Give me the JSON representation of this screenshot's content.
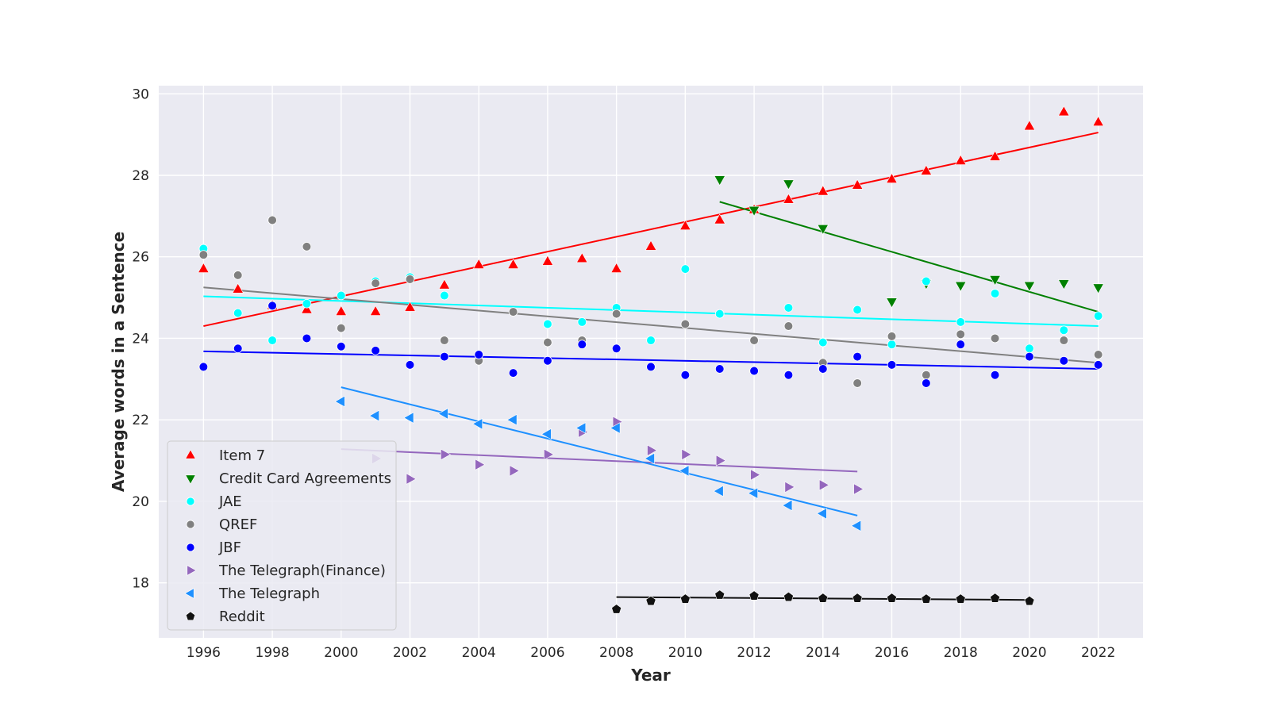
{
  "chart_data": {
    "type": "scatter",
    "xlabel": "Year",
    "ylabel": "Average words in a Sentence",
    "xlim": [
      1994.7,
      2023.3
    ],
    "ylim": [
      16.65,
      30.2
    ],
    "xticks": [
      1996,
      1998,
      2000,
      2002,
      2004,
      2006,
      2008,
      2010,
      2012,
      2014,
      2016,
      2018,
      2020,
      2022
    ],
    "yticks": [
      18,
      20,
      22,
      24,
      26,
      28,
      30
    ],
    "grid": true,
    "legend_position": "lower-left",
    "series": [
      {
        "name": "Item 7",
        "color": "#ff0000",
        "marker": "triangle-up",
        "x": [
          1996,
          1997,
          1998,
          1999,
          2000,
          2001,
          2002,
          2003,
          2004,
          2005,
          2006,
          2007,
          2008,
          2009,
          2010,
          2011,
          2012,
          2013,
          2014,
          2015,
          2016,
          2017,
          2018,
          2019,
          2020,
          2021,
          2022
        ],
        "y": [
          25.7,
          25.2,
          24.8,
          24.7,
          24.65,
          24.65,
          24.75,
          25.3,
          25.8,
          25.8,
          25.88,
          25.95,
          25.7,
          26.25,
          26.75,
          26.9,
          27.15,
          27.4,
          27.6,
          27.75,
          27.9,
          28.1,
          28.35,
          28.45,
          29.2,
          29.55,
          29.3
        ],
        "trend": [
          [
            1996,
            24.3
          ],
          [
            2022,
            29.05
          ]
        ]
      },
      {
        "name": "Credit Card Agreements",
        "color": "#008000",
        "marker": "triangle-down",
        "x": [
          2011,
          2012,
          2013,
          2014,
          2016,
          2017,
          2018,
          2019,
          2020,
          2021,
          2022
        ],
        "y": [
          27.9,
          27.15,
          27.8,
          26.7,
          24.9,
          25.35,
          25.3,
          25.45,
          25.3,
          25.35,
          25.25
        ],
        "trend": [
          [
            2011,
            27.35
          ],
          [
            2022,
            24.65
          ]
        ]
      },
      {
        "name": "JAE",
        "color": "#00ffff",
        "marker": "circle",
        "x": [
          1996,
          1997,
          1998,
          1999,
          2000,
          2001,
          2002,
          2003,
          2006,
          2007,
          2008,
          2009,
          2010,
          2011,
          2013,
          2014,
          2015,
          2016,
          2017,
          2018,
          2019,
          2020,
          2021,
          2022
        ],
        "y": [
          26.2,
          24.62,
          23.95,
          24.85,
          25.05,
          25.4,
          25.5,
          25.05,
          24.35,
          24.4,
          24.75,
          23.95,
          25.7,
          24.6,
          24.75,
          23.9,
          24.7,
          23.85,
          25.4,
          24.4,
          25.1,
          23.75,
          24.2,
          24.55
        ],
        "trend": [
          [
            1996,
            25.03
          ],
          [
            2022,
            24.3
          ]
        ]
      },
      {
        "name": "QREF",
        "color": "#808080",
        "marker": "circle",
        "x": [
          1996,
          1997,
          1998,
          1999,
          2000,
          2001,
          2002,
          2003,
          2004,
          2005,
          2006,
          2007,
          2008,
          2010,
          2012,
          2013,
          2014,
          2015,
          2016,
          2017,
          2018,
          2019,
          2020,
          2021,
          2022
        ],
        "y": [
          26.05,
          25.55,
          26.9,
          26.25,
          24.25,
          25.35,
          25.45,
          23.95,
          23.45,
          24.65,
          23.9,
          23.95,
          24.6,
          24.35,
          23.95,
          24.3,
          23.4,
          22.9,
          24.05,
          23.1,
          24.1,
          24.0,
          23.55,
          23.95,
          23.6
        ],
        "trend": [
          [
            1996,
            25.25
          ],
          [
            2022,
            23.4
          ]
        ]
      },
      {
        "name": "JBF",
        "color": "#0000ff",
        "marker": "circle",
        "x": [
          1996,
          1997,
          1998,
          1999,
          2000,
          2001,
          2002,
          2003,
          2004,
          2005,
          2006,
          2007,
          2008,
          2009,
          2010,
          2011,
          2012,
          2013,
          2014,
          2015,
          2016,
          2017,
          2018,
          2019,
          2020,
          2021,
          2022
        ],
        "y": [
          23.3,
          23.75,
          24.8,
          24.0,
          23.8,
          23.7,
          23.35,
          23.55,
          23.6,
          23.15,
          23.45,
          23.85,
          23.75,
          23.3,
          23.1,
          23.25,
          23.2,
          23.1,
          23.25,
          23.55,
          23.35,
          22.9,
          23.85,
          23.1,
          23.55,
          23.45,
          23.35
        ],
        "trend": [
          [
            1996,
            23.68
          ],
          [
            2022,
            23.25
          ]
        ]
      },
      {
        "name": "The Telegraph(Finance)",
        "color": "#9467bd",
        "marker": "triangle-right",
        "x": [
          2001,
          2002,
          2003,
          2004,
          2005,
          2006,
          2007,
          2008,
          2009,
          2010,
          2011,
          2012,
          2013,
          2014,
          2015
        ],
        "y": [
          21.05,
          20.55,
          21.15,
          20.9,
          20.75,
          21.15,
          21.7,
          21.95,
          21.25,
          21.15,
          21.0,
          20.65,
          20.35,
          20.4,
          20.3
        ],
        "trend": [
          [
            2000,
            21.28
          ],
          [
            2015,
            20.73
          ]
        ]
      },
      {
        "name": "The Telegraph",
        "color": "#1e90ff",
        "marker": "triangle-left",
        "x": [
          2000,
          2001,
          2002,
          2003,
          2004,
          2005,
          2006,
          2007,
          2008,
          2009,
          2010,
          2011,
          2012,
          2013,
          2014,
          2015
        ],
        "y": [
          22.45,
          22.1,
          22.05,
          22.15,
          21.9,
          22.0,
          21.65,
          21.8,
          21.8,
          21.05,
          20.75,
          20.25,
          20.2,
          19.9,
          19.7,
          19.4
        ],
        "trend": [
          [
            2000,
            22.8
          ],
          [
            2015,
            19.65
          ]
        ]
      },
      {
        "name": "Reddit",
        "color": "#111111",
        "marker": "pentagon",
        "x": [
          2008,
          2009,
          2010,
          2011,
          2012,
          2013,
          2014,
          2015,
          2016,
          2017,
          2018,
          2019,
          2020
        ],
        "y": [
          17.35,
          17.55,
          17.6,
          17.7,
          17.68,
          17.65,
          17.62,
          17.62,
          17.62,
          17.6,
          17.6,
          17.62,
          17.55
        ],
        "trend": [
          [
            2008,
            17.65
          ],
          [
            2020,
            17.58
          ]
        ]
      }
    ]
  }
}
